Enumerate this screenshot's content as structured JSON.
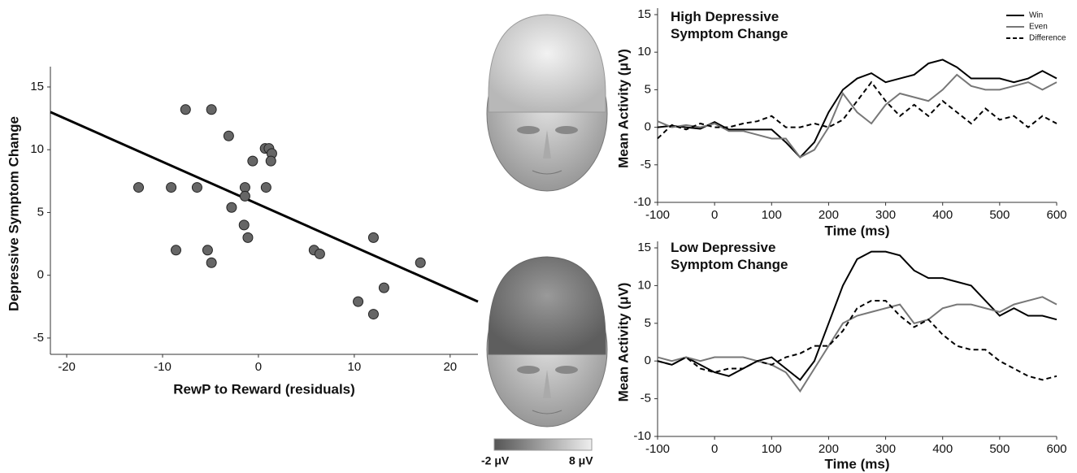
{
  "chart_data": [
    {
      "type": "scatter",
      "xlabel": "RewP to Reward (residuals)",
      "ylabel": "Depressive Symptom Change",
      "xlim": [
        -21.7,
        22.9
      ],
      "xticks": [
        -20,
        -10,
        0,
        10,
        20
      ],
      "ylim": [
        -6.3,
        16.1
      ],
      "yticks": [
        -5,
        0,
        5,
        10,
        15
      ],
      "color": "#666666",
      "x": [
        -7.6,
        -4.9,
        -3.1,
        0.7,
        1.1,
        1.4,
        1.3,
        -0.6,
        -12.5,
        -9.1,
        -6.4,
        -1.4,
        0.8,
        -1.4,
        -2.8,
        -1.5,
        -1.1,
        -8.6,
        -5.3,
        5.8,
        6.4,
        12.0,
        -4.9,
        16.9,
        13.1,
        10.4,
        12.0
      ],
      "y": [
        13.2,
        13.2,
        11.1,
        10.1,
        10.1,
        9.7,
        9.1,
        9.1,
        7.0,
        7.0,
        7.0,
        7.0,
        7.0,
        6.3,
        5.4,
        4.0,
        3.0,
        2.0,
        2.0,
        2.0,
        1.7,
        3.0,
        1.0,
        1.0,
        -1.0,
        -2.1,
        -3.1
      ],
      "fit_line": {
        "x": [
          -21.7,
          22.9
        ],
        "y": [
          13.0,
          -2.1
        ],
        "color": "#000000"
      }
    },
    {
      "type": "line",
      "title": "High Depressive Symptom Change",
      "xlabel": "Time (ms)",
      "ylabel": "Mean Activity (μV)",
      "xlim": [
        -100,
        600
      ],
      "xticks": [
        -100,
        0,
        100,
        200,
        300,
        400,
        500,
        600
      ],
      "ylim": [
        -10,
        15
      ],
      "yticks": [
        -10,
        -5,
        0,
        5,
        10,
        15
      ],
      "legend": "upper right",
      "x": [
        -100,
        -75,
        -50,
        -25,
        0,
        25,
        50,
        75,
        100,
        125,
        150,
        175,
        200,
        225,
        250,
        275,
        300,
        325,
        350,
        375,
        400,
        425,
        450,
        475,
        500,
        525,
        550,
        575,
        600
      ],
      "series": [
        {
          "name": "Win",
          "color": "#000000",
          "dash": "solid",
          "values": [
            0,
            0.2,
            0,
            -0.2,
            0.7,
            -0.3,
            -0.3,
            -0.3,
            -0.3,
            -2,
            -4,
            -2,
            2,
            5,
            6.5,
            7.2,
            6,
            6.5,
            7,
            8.5,
            9,
            8,
            6.5,
            6.5,
            6.5,
            6,
            6.5,
            7.5,
            6.5
          ]
        },
        {
          "name": "Even",
          "color": "#777777",
          "dash": "solid",
          "values": [
            0.8,
            0,
            0.3,
            0,
            0.5,
            -0.5,
            -0.5,
            -1,
            -1.5,
            -1.5,
            -4,
            -3,
            0,
            4.5,
            2,
            0.5,
            3,
            4.5,
            4,
            3.5,
            5,
            7,
            5.5,
            5,
            5,
            5.5,
            6,
            5,
            6
          ]
        },
        {
          "name": "Difference",
          "color": "#000000",
          "dash": "dashed",
          "values": [
            -1.5,
            0.3,
            -0.3,
            0.5,
            0,
            0,
            0.5,
            0.8,
            1.5,
            0,
            0,
            0.5,
            0,
            1,
            3.5,
            6,
            3.5,
            1.5,
            3,
            1.5,
            3.5,
            2,
            0.5,
            2.5,
            1,
            1.5,
            0,
            1.5,
            0.5
          ]
        }
      ]
    },
    {
      "type": "line",
      "title": "Low Depressive Symptom Change",
      "xlabel": "Time (ms)",
      "ylabel": "Mean Activity (μV)",
      "xlim": [
        -100,
        600
      ],
      "xticks": [
        -100,
        0,
        100,
        200,
        300,
        400,
        500,
        600
      ],
      "ylim": [
        -10,
        15
      ],
      "yticks": [
        -10,
        -5,
        0,
        5,
        10,
        15
      ],
      "legend": "none",
      "x": [
        -100,
        -75,
        -50,
        -25,
        0,
        25,
        50,
        75,
        100,
        125,
        150,
        175,
        200,
        225,
        250,
        275,
        300,
        325,
        350,
        375,
        400,
        425,
        450,
        475,
        500,
        525,
        550,
        575,
        600
      ],
      "series": [
        {
          "name": "Win",
          "color": "#000000",
          "dash": "solid",
          "values": [
            0,
            -0.5,
            0.5,
            -0.5,
            -1.5,
            -2,
            -1,
            0,
            0.5,
            -1,
            -2.5,
            0,
            5,
            10,
            13.5,
            14.5,
            14.5,
            14,
            12,
            11,
            11,
            10.5,
            10,
            8,
            6,
            7,
            6,
            6,
            5.5
          ]
        },
        {
          "name": "Even",
          "color": "#777777",
          "dash": "solid",
          "values": [
            0.5,
            0,
            0.5,
            0,
            0.5,
            0.5,
            0.5,
            0,
            -0.5,
            -1.5,
            -4,
            -1,
            2,
            5,
            6,
            6.5,
            7,
            7.5,
            5,
            5.5,
            7,
            7.5,
            7.5,
            7,
            6.5,
            7.5,
            8,
            8.5,
            7.5
          ]
        },
        {
          "name": "Difference",
          "color": "#000000",
          "dash": "dashed",
          "values": [
            0,
            -0.5,
            0.5,
            -1,
            -1.5,
            -1,
            -1,
            0,
            -0.5,
            0.5,
            1,
            2,
            2,
            4,
            7,
            8,
            8,
            6,
            4.5,
            5.5,
            3.5,
            2,
            1.5,
            1.5,
            0,
            -1,
            -2,
            -2.5,
            -2
          ]
        }
      ]
    }
  ],
  "topomap": {
    "colorbar_labels": [
      "-2 μV",
      "8 μV"
    ]
  }
}
